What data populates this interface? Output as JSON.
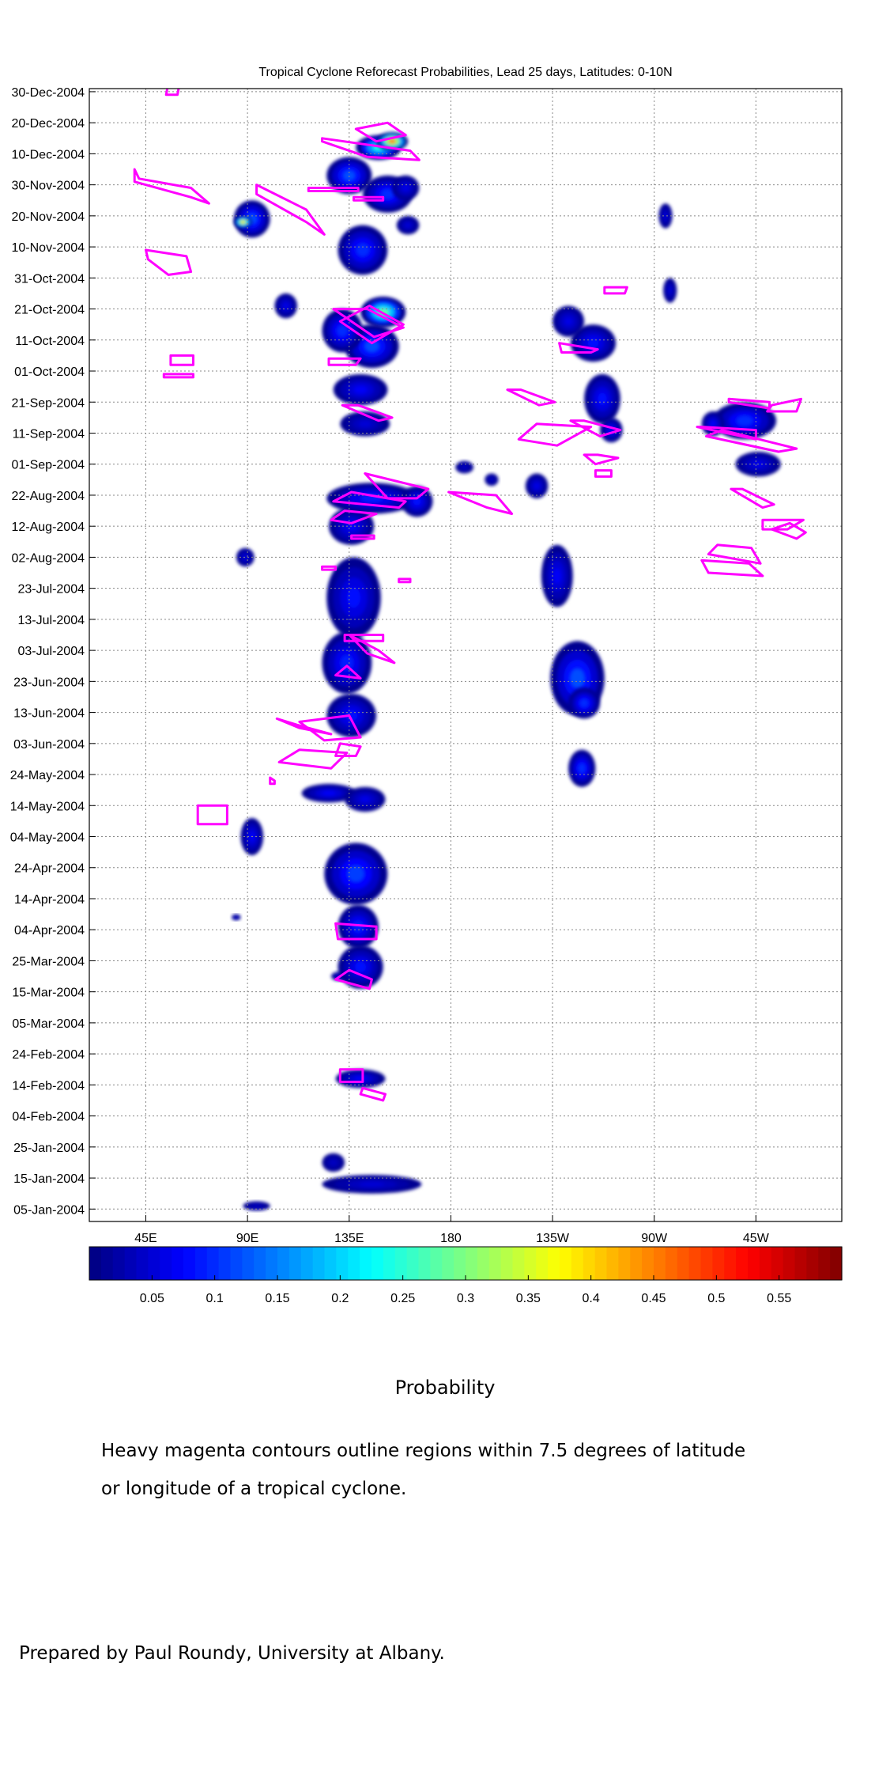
{
  "chart_data": {
    "type": "heatmap",
    "title": "Tropical Cyclone Reforecast Probabilities, Lead 25 days, Latitudes: 0-10N",
    "x_axis": {
      "ticks": [
        {
          "lon": 45,
          "label": "45E"
        },
        {
          "lon": 90,
          "label": "90E"
        },
        {
          "lon": 135,
          "label": "135E"
        },
        {
          "lon": 180,
          "label": "180"
        },
        {
          "lon": 225,
          "label": "135W"
        },
        {
          "lon": 270,
          "label": "90W"
        },
        {
          "lon": 315,
          "label": "45W"
        }
      ],
      "range": [
        20,
        353
      ]
    },
    "y_axis": {
      "ticks": [
        "05-Jan-2004",
        "15-Jan-2004",
        "25-Jan-2004",
        "04-Feb-2004",
        "14-Feb-2004",
        "24-Feb-2004",
        "05-Mar-2004",
        "15-Mar-2004",
        "25-Mar-2004",
        "04-Apr-2004",
        "14-Apr-2004",
        "24-Apr-2004",
        "04-May-2004",
        "14-May-2004",
        "24-May-2004",
        "03-Jun-2004",
        "13-Jun-2004",
        "23-Jun-2004",
        "03-Jul-2004",
        "13-Jul-2004",
        "23-Jul-2004",
        "02-Aug-2004",
        "12-Aug-2004",
        "22-Aug-2004",
        "01-Sep-2004",
        "11-Sep-2004",
        "21-Sep-2004",
        "01-Oct-2004",
        "11-Oct-2004",
        "21-Oct-2004",
        "31-Oct-2004",
        "10-Nov-2004",
        "20-Nov-2004",
        "30-Nov-2004",
        "10-Dec-2004",
        "20-Dec-2004",
        "30-Dec-2004"
      ],
      "range": [
        "01-Jan-2004",
        "31-Dec-2004"
      ]
    },
    "grid": true,
    "colorbar": {
      "ticks": [
        "0.05",
        "0.1",
        "0.15",
        "0.2",
        "0.25",
        "0.3",
        "0.35",
        "0.4",
        "0.45",
        "0.5",
        "0.55"
      ],
      "range": [
        0,
        0.6
      ],
      "label": "Probability"
    },
    "blobs": [
      {
        "lon": 94,
        "day": 5,
        "dlon": 6,
        "ddays": 1.5,
        "p": 0.04
      },
      {
        "lon": 128,
        "day": 19,
        "dlon": 5,
        "ddays": 3,
        "p": 0.04
      },
      {
        "lon": 145,
        "day": 12,
        "dlon": 22,
        "ddays": 3,
        "p": 0.05
      },
      {
        "lon": 140,
        "day": 46,
        "dlon": 11,
        "ddays": 3,
        "p": 0.07
      },
      {
        "lon": 131,
        "day": 79,
        "dlon": 4,
        "ddays": 1.5,
        "p": 0.06
      },
      {
        "lon": 140,
        "day": 82,
        "dlon": 10,
        "ddays": 7,
        "p": 0.08
      },
      {
        "lon": 139,
        "day": 95,
        "dlon": 9,
        "ddays": 7,
        "p": 0.09
      },
      {
        "lon": 138,
        "day": 112,
        "dlon": 14,
        "ddays": 10,
        "p": 0.11
      },
      {
        "lon": 126,
        "day": 138,
        "dlon": 12,
        "ddays": 3,
        "p": 0.07
      },
      {
        "lon": 142,
        "day": 136,
        "dlon": 9,
        "ddays": 4,
        "p": 0.06
      },
      {
        "lon": 92,
        "day": 124,
        "dlon": 5,
        "ddays": 6,
        "p": 0.07
      },
      {
        "lon": 85,
        "day": 98,
        "dlon": 2,
        "ddays": 1,
        "p": 0.04
      },
      {
        "lon": 136,
        "day": 163,
        "dlon": 11,
        "ddays": 7,
        "p": 0.08
      },
      {
        "lon": 134,
        "day": 180,
        "dlon": 11,
        "ddays": 10,
        "p": 0.09
      },
      {
        "lon": 137,
        "day": 201,
        "dlon": 12,
        "ddays": 13,
        "p": 0.08
      },
      {
        "lon": 136,
        "day": 224,
        "dlon": 10,
        "ddays": 6,
        "p": 0.07
      },
      {
        "lon": 145,
        "day": 233,
        "dlon": 20,
        "ddays": 5,
        "p": 0.09
      },
      {
        "lon": 165,
        "day": 232,
        "dlon": 7,
        "ddays": 5,
        "p": 0.08
      },
      {
        "lon": 89,
        "day": 214,
        "dlon": 4,
        "ddays": 3,
        "p": 0.05
      },
      {
        "lon": 142,
        "day": 257,
        "dlon": 11,
        "ddays": 4,
        "p": 0.05
      },
      {
        "lon": 140,
        "day": 268,
        "dlon": 12,
        "ddays": 5,
        "p": 0.07
      },
      {
        "lon": 145,
        "day": 282,
        "dlon": 12,
        "ddays": 7,
        "p": 0.12
      },
      {
        "lon": 150,
        "day": 293,
        "dlon": 10,
        "ddays": 5,
        "p": 0.28
      },
      {
        "lon": 132,
        "day": 287,
        "dlon": 9,
        "ddays": 7,
        "p": 0.1
      },
      {
        "lon": 107,
        "day": 295,
        "dlon": 5,
        "ddays": 4,
        "p": 0.06
      },
      {
        "lon": 141,
        "day": 313,
        "dlon": 11,
        "ddays": 8,
        "p": 0.1
      },
      {
        "lon": 152,
        "day": 331,
        "dlon": 11,
        "ddays": 6,
        "p": 0.1
      },
      {
        "lon": 135,
        "day": 337,
        "dlon": 10,
        "ddays": 6,
        "p": 0.12
      },
      {
        "lon": 148,
        "day": 346,
        "dlon": 10,
        "ddays": 4,
        "p": 0.24
      },
      {
        "lon": 154,
        "day": 348,
        "dlon": 7,
        "ddays": 3,
        "p": 0.45
      },
      {
        "lon": 92,
        "day": 323,
        "dlon": 8,
        "ddays": 6,
        "p": 0.12
      },
      {
        "lon": 88,
        "day": 322,
        "dlon": 4,
        "ddays": 2,
        "p": 0.4
      },
      {
        "lon": 160,
        "day": 333,
        "dlon": 6,
        "ddays": 4,
        "p": 0.06
      },
      {
        "lon": 161,
        "day": 321,
        "dlon": 5,
        "ddays": 3,
        "p": 0.05
      },
      {
        "lon": 238,
        "day": 146,
        "dlon": 6,
        "ddays": 6,
        "p": 0.1
      },
      {
        "lon": 236,
        "day": 175,
        "dlon": 12,
        "ddays": 12,
        "p": 0.12
      },
      {
        "lon": 239,
        "day": 167,
        "dlon": 7,
        "ddays": 5,
        "p": 0.1
      },
      {
        "lon": 227,
        "day": 208,
        "dlon": 7,
        "ddays": 10,
        "p": 0.07
      },
      {
        "lon": 218,
        "day": 237,
        "dlon": 5,
        "ddays": 4,
        "p": 0.06
      },
      {
        "lon": 247,
        "day": 265,
        "dlon": 8,
        "ddays": 8,
        "p": 0.08
      },
      {
        "lon": 243,
        "day": 283,
        "dlon": 10,
        "ddays": 6,
        "p": 0.08
      },
      {
        "lon": 251,
        "day": 255,
        "dlon": 5,
        "ddays": 4,
        "p": 0.07
      },
      {
        "lon": 232,
        "day": 290,
        "dlon": 7,
        "ddays": 5,
        "p": 0.06
      },
      {
        "lon": 275,
        "day": 324,
        "dlon": 3,
        "ddays": 4,
        "p": 0.05
      },
      {
        "lon": 277,
        "day": 300,
        "dlon": 3,
        "ddays": 4,
        "p": 0.05
      },
      {
        "lon": 310,
        "day": 258,
        "dlon": 14,
        "ddays": 6,
        "p": 0.1
      },
      {
        "lon": 296,
        "day": 257,
        "dlon": 5,
        "ddays": 4,
        "p": 0.07
      },
      {
        "lon": 316,
        "day": 244,
        "dlon": 10,
        "ddays": 4,
        "p": 0.06
      },
      {
        "lon": 198,
        "day": 239,
        "dlon": 3,
        "ddays": 2,
        "p": 0.04
      },
      {
        "lon": 186,
        "day": 243,
        "dlon": 4,
        "ddays": 2,
        "p": 0.04
      }
    ],
    "contours": [
      [
        [
          55,
          367
        ],
        [
          60,
          367
        ],
        [
          59,
          363
        ],
        [
          54,
          363
        ]
      ],
      [
        [
          40,
          339
        ],
        [
          42,
          336
        ],
        [
          65,
          333
        ],
        [
          73,
          328
        ],
        [
          65,
          330
        ],
        [
          40,
          335
        ]
      ],
      [
        [
          94,
          334
        ],
        [
          116,
          326
        ],
        [
          124,
          318
        ],
        [
          116,
          322
        ],
        [
          94,
          331
        ]
      ],
      [
        [
          45,
          313
        ],
        [
          63,
          311
        ],
        [
          65,
          306
        ],
        [
          55,
          305
        ],
        [
          46,
          310
        ]
      ],
      [
        [
          117,
          333
        ],
        [
          139,
          333
        ],
        [
          139,
          332
        ],
        [
          117,
          332
        ]
      ],
      [
        [
          123,
          348
        ],
        [
          143,
          343
        ],
        [
          166,
          342
        ],
        [
          162,
          345
        ],
        [
          123,
          349
        ]
      ],
      [
        [
          138,
          352
        ],
        [
          152,
          354
        ],
        [
          160,
          350
        ],
        [
          147,
          348
        ]
      ],
      [
        [
          137,
          330
        ],
        [
          150,
          330
        ],
        [
          150,
          329
        ],
        [
          137,
          329
        ]
      ],
      [
        [
          128,
          294
        ],
        [
          143,
          294
        ],
        [
          159,
          288
        ],
        [
          146,
          285
        ]
      ],
      [
        [
          144,
          295
        ],
        [
          159,
          289
        ],
        [
          145,
          283
        ],
        [
          131,
          290
        ]
      ],
      [
        [
          126,
          278
        ],
        [
          140,
          278
        ],
        [
          138,
          276
        ],
        [
          126,
          276
        ]
      ],
      [
        [
          139,
          263
        ],
        [
          154,
          259
        ],
        [
          148,
          258
        ],
        [
          132,
          263
        ]
      ],
      [
        [
          56,
          279
        ],
        [
          66,
          279
        ],
        [
          66,
          276
        ],
        [
          56,
          276
        ]
      ],
      [
        [
          53,
          273
        ],
        [
          66,
          273
        ],
        [
          66,
          272
        ],
        [
          53,
          272
        ]
      ],
      [
        [
          142,
          241
        ],
        [
          170,
          236
        ],
        [
          165,
          233
        ],
        [
          152,
          233
        ]
      ],
      [
        [
          136,
          235
        ],
        [
          160,
          232
        ],
        [
          157,
          230
        ],
        [
          128,
          232
        ]
      ],
      [
        [
          127,
          226
        ],
        [
          136,
          225
        ],
        [
          147,
          228
        ],
        [
          133,
          229
        ]
      ],
      [
        [
          136,
          221
        ],
        [
          146,
          221
        ],
        [
          146,
          220
        ],
        [
          136,
          220
        ]
      ],
      [
        [
          123,
          211
        ],
        [
          129,
          211
        ],
        [
          129,
          210
        ],
        [
          123,
          210
        ]
      ],
      [
        [
          157,
          207
        ],
        [
          162,
          207
        ],
        [
          162,
          206
        ],
        [
          157,
          206
        ]
      ],
      [
        [
          179,
          235
        ],
        [
          200,
          234
        ],
        [
          207,
          228
        ],
        [
          196,
          230
        ]
      ],
      [
        [
          211,
          268
        ],
        [
          226,
          264
        ],
        [
          219,
          263
        ],
        [
          205,
          268
        ]
      ],
      [
        [
          218,
          257
        ],
        [
          242,
          256
        ],
        [
          227,
          250
        ],
        [
          210,
          252
        ]
      ],
      [
        [
          239,
          258
        ],
        [
          255,
          255
        ],
        [
          246,
          253
        ],
        [
          233,
          258
        ]
      ],
      [
        [
          245,
          247
        ],
        [
          254,
          246
        ],
        [
          244,
          244
        ],
        [
          239,
          247
        ]
      ],
      [
        [
          244,
          242
        ],
        [
          251,
          242
        ],
        [
          251,
          240
        ],
        [
          244,
          240
        ]
      ],
      [
        [
          228,
          283
        ],
        [
          245,
          281
        ],
        [
          242,
          280
        ],
        [
          229,
          280
        ]
      ],
      [
        [
          248,
          301
        ],
        [
          258,
          301
        ],
        [
          257,
          299
        ],
        [
          248,
          299
        ]
      ],
      [
        [
          291,
          256
        ],
        [
          315,
          255
        ],
        [
          315,
          252
        ],
        [
          289,
          256
        ]
      ],
      [
        [
          303,
          264
        ],
        [
          321,
          262
        ],
        [
          321,
          264
        ],
        [
          303,
          265
        ]
      ],
      [
        [
          322,
          263
        ],
        [
          335,
          265
        ],
        [
          333,
          261
        ],
        [
          320,
          261
        ]
      ],
      [
        [
          300,
          255
        ],
        [
          333,
          249
        ],
        [
          325,
          248
        ],
        [
          293,
          253
        ]
      ],
      [
        [
          309,
          236
        ],
        [
          323,
          231
        ],
        [
          318,
          230
        ],
        [
          304,
          236
        ]
      ],
      [
        [
          318,
          226
        ],
        [
          336,
          226
        ],
        [
          329,
          223
        ],
        [
          318,
          223
        ]
      ],
      [
        [
          298,
          218
        ],
        [
          313,
          217
        ],
        [
          317,
          212
        ],
        [
          294,
          215
        ]
      ],
      [
        [
          291,
          213
        ],
        [
          312,
          212
        ],
        [
          318,
          208
        ],
        [
          294,
          209
        ]
      ],
      [
        [
          337,
          222
        ],
        [
          330,
          225
        ],
        [
          322,
          223
        ],
        [
          333,
          220
        ]
      ],
      [
        [
          133,
          189
        ],
        [
          150,
          189
        ],
        [
          150,
          187
        ],
        [
          133,
          187
        ]
      ],
      [
        [
          135,
          189
        ],
        [
          148,
          184
        ],
        [
          155,
          180
        ],
        [
          143,
          183
        ]
      ],
      [
        [
          134,
          179
        ],
        [
          129,
          176
        ],
        [
          140,
          175
        ],
        [
          134,
          179
        ]
      ],
      [
        [
          103,
          162
        ],
        [
          112,
          160
        ],
        [
          127,
          157
        ],
        [
          113,
          159
        ]
      ],
      [
        [
          135,
          163
        ],
        [
          113,
          161
        ],
        [
          124,
          155
        ],
        [
          140,
          156
        ]
      ],
      [
        [
          131,
          154
        ],
        [
          129,
          150
        ],
        [
          138,
          150
        ],
        [
          140,
          153
        ]
      ],
      [
        [
          113,
          152
        ],
        [
          134,
          151
        ],
        [
          127,
          146
        ],
        [
          104,
          148
        ]
      ],
      [
        [
          100,
          143
        ],
        [
          102,
          142
        ],
        [
          102,
          141
        ],
        [
          100,
          141
        ]
      ],
      [
        [
          68,
          134
        ],
        [
          81,
          134
        ],
        [
          81,
          128
        ],
        [
          68,
          128
        ]
      ],
      [
        [
          129,
          96
        ],
        [
          147,
          95
        ],
        [
          147,
          91
        ],
        [
          130,
          91
        ]
      ],
      [
        [
          135,
          81
        ],
        [
          145,
          78
        ],
        [
          144,
          75
        ],
        [
          129,
          78
        ]
      ],
      [
        [
          131,
          49
        ],
        [
          141,
          49
        ],
        [
          141,
          45
        ],
        [
          131,
          45
        ]
      ],
      [
        [
          141,
          43
        ],
        [
          151,
          41
        ],
        [
          150,
          39
        ],
        [
          140,
          41
        ]
      ]
    ]
  },
  "caption": {
    "colorbar_label": "Probability",
    "note_line1": "Heavy magenta contours outline regions within 7.5 degrees of latitude",
    "note_line2": "or longitude of a tropical cyclone.",
    "credit": "Prepared by Paul Roundy, University at Albany."
  },
  "colors": {
    "contour": "#ff00ff",
    "grid": "#888888",
    "colormap": "jet"
  }
}
